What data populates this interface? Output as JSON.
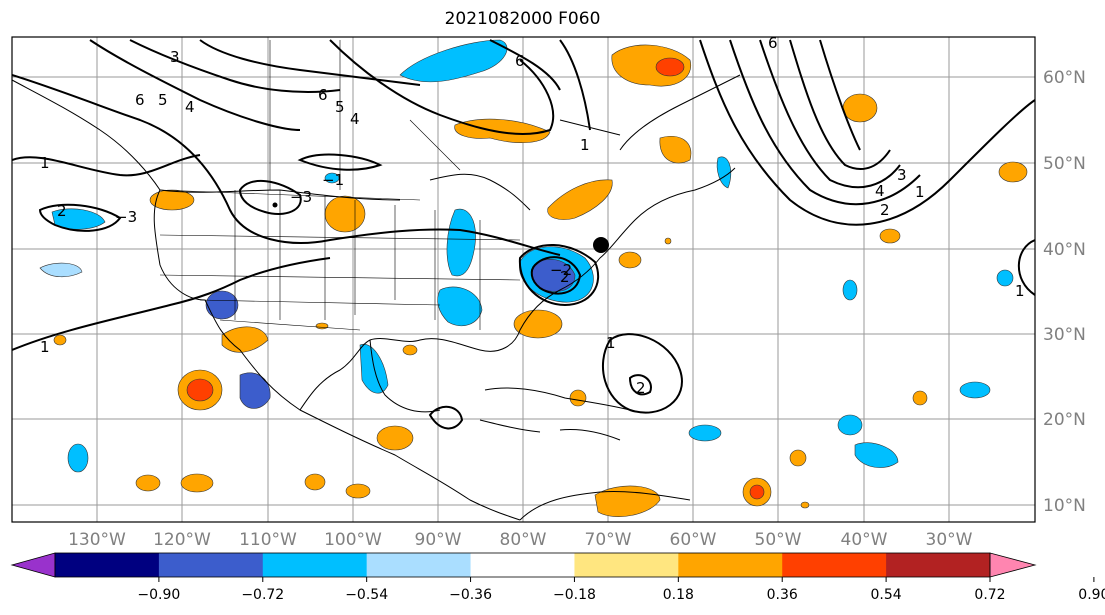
{
  "title": "2021082000 F060",
  "lat_labels": [
    "60°N",
    "50°N",
    "40°N",
    "30°N",
    "20°N",
    "10°N"
  ],
  "lon_labels": [
    "130°W",
    "120°W",
    "110°W",
    "100°W",
    "90°W",
    "80°W",
    "70°W",
    "60°W",
    "50°W",
    "40°W",
    "30°W"
  ],
  "colorbar": {
    "colors": [
      "#9932cc",
      "#000080",
      "#3c5dcc",
      "#00bfff",
      "#aadeff",
      "#ffffff",
      "#ffe680",
      "#ffa500",
      "#ff4000",
      "#b22222",
      "#ff85b0"
    ],
    "tick_labels": [
      "−0.90",
      "−0.72",
      "−0.54",
      "−0.36",
      "−0.18",
      "0.18",
      "0.36",
      "0.54",
      "0.72",
      "0.90"
    ]
  },
  "contour_labels": [
    "3",
    "6",
    "5",
    "4",
    "6",
    "5",
    "4",
    "6",
    "1",
    "−1",
    "2",
    "−3",
    "1",
    "−3",
    "1",
    "2",
    "2",
    "6",
    "1",
    "3",
    "4",
    "2",
    "1",
    "−2",
    "1"
  ]
}
